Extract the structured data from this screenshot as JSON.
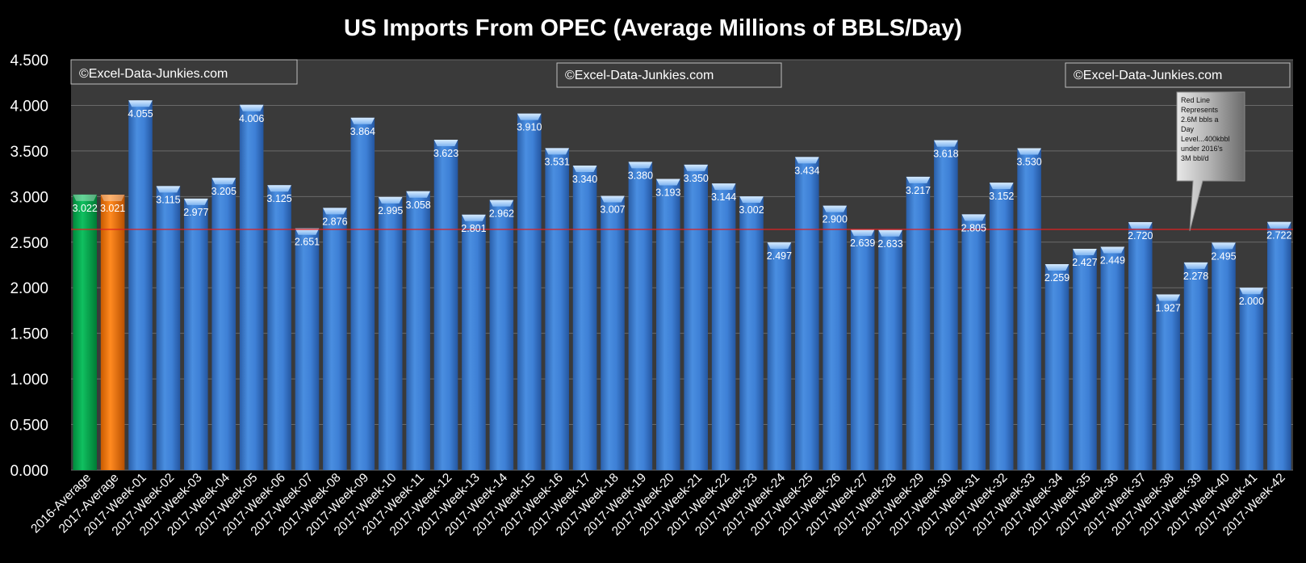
{
  "chart_data": {
    "type": "bar",
    "title": "US Imports From OPEC (Average Millions of BBLS/Day)",
    "xlabel": "",
    "ylabel": "",
    "ylim": [
      0,
      4.5
    ],
    "y_ticks": [
      "0.000",
      "0.500",
      "1.000",
      "1.500",
      "2.000",
      "2.500",
      "3.000",
      "3.500",
      "4.000",
      "4.500"
    ],
    "grid": true,
    "legend": "none",
    "categories": [
      "2016-Average",
      "2017-Average",
      "2017-Week-01",
      "2017-Week-02",
      "2017-Week-03",
      "2017-Week-04",
      "2017-Week-05",
      "2017-Week-06",
      "2017-Week-07",
      "2017-Week-08",
      "2017-Week-09",
      "2017-Week-10",
      "2017-Week-11",
      "2017-Week-12",
      "2017-Week-13",
      "2017-Week-14",
      "2017-Week-15",
      "2017-Week-16",
      "2017-Week-17",
      "2017-Week-18",
      "2017-Week-19",
      "2017-Week-20",
      "2017-Week-21",
      "2017-Week-22",
      "2017-Week-23",
      "2017-Week-24",
      "2017-Week-25",
      "2017-Week-26",
      "2017-Week-27",
      "2017-Week-28",
      "2017-Week-29",
      "2017-Week-30",
      "2017-Week-31",
      "2017-Week-32",
      "2017-Week-33",
      "2017-Week-34",
      "2017-Week-35",
      "2017-Week-36",
      "2017-Week-37",
      "2017-Week-38",
      "2017-Week-39",
      "2017-Week-40",
      "2017-Week-41",
      "2017-Week-42"
    ],
    "values": [
      3.022,
      3.021,
      4.055,
      3.115,
      2.977,
      3.205,
      4.006,
      3.125,
      2.651,
      2.876,
      3.864,
      2.995,
      3.058,
      3.623,
      2.801,
      2.962,
      3.91,
      3.531,
      3.34,
      3.007,
      3.38,
      3.193,
      3.35,
      3.144,
      3.002,
      2.497,
      3.434,
      2.9,
      2.639,
      2.633,
      3.217,
      3.618,
      2.805,
      3.152,
      3.53,
      2.259,
      2.427,
      2.449,
      2.72,
      1.927,
      2.278,
      2.495,
      2.0,
      2.722
    ],
    "value_labels": [
      "3.022",
      "3.021",
      "4.055",
      "3.115",
      "2.977",
      "3.205",
      "4.006",
      "3.125",
      "2.651",
      "2.876",
      "3.864",
      "2.995",
      "3.058",
      "3.623",
      "2.801",
      "2.962",
      "3.910",
      "3.531",
      "3.340",
      "3.007",
      "3.380",
      "3.193",
      "3.350",
      "3.144",
      "3.002",
      "2.497",
      "3.434",
      "2.900",
      "2.639",
      "2.633",
      "3.217",
      "3.618",
      "2.805",
      "3.152",
      "3.530",
      "2.259",
      "2.427",
      "2.449",
      "2.720",
      "1.927",
      "2.278",
      "2.495",
      "2.000",
      "2.722"
    ],
    "bar_colors": {
      "2016-Average": "#00B050",
      "2017-Average": "#F07810",
      "default": "#3C7CD0"
    },
    "reference_line": {
      "value": 2.64,
      "color": "#E02020"
    },
    "annotation": {
      "lines": [
        "Red Line",
        "Represents",
        "2.6M bbls a",
        "Day",
        "Level...400kbbl",
        "under 2016's",
        "3M bbl/d"
      ]
    },
    "watermarks": [
      "©Excel-Data-Junkies.com",
      "©Excel-Data-Junkies.com",
      "©Excel-Data-Junkies.com"
    ]
  },
  "colors": {
    "background": "#000000",
    "plot_background": "#3A3A3A",
    "gridline": "#6A6A6A",
    "text": "#FFFFFF",
    "watermark_border": "#BFBFBF"
  }
}
